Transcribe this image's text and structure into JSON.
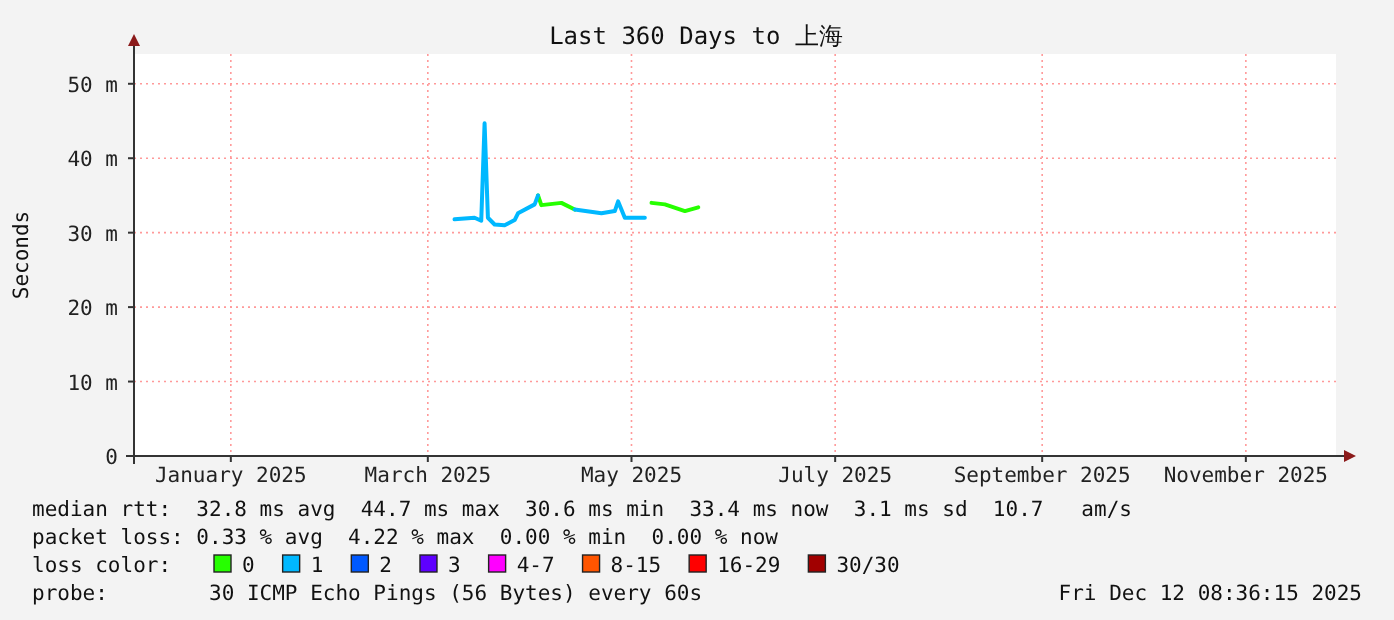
{
  "chart_data": {
    "type": "line",
    "title": "Last 360 Days to 上海",
    "ylabel": "Seconds",
    "legend_title": "loss color:",
    "x": [
      "2025-03-23",
      "2025-03-29",
      "2025-03-31",
      "2025-04-01",
      "2025-04-02",
      "2025-04-04",
      "2025-04-07",
      "2025-04-10",
      "2025-04-11",
      "2025-04-16",
      "2025-04-17",
      "2025-04-18",
      "2025-04-24",
      "2025-04-28",
      "2025-05-06",
      "2025-05-10",
      "2025-05-11",
      "2025-05-13",
      "2025-05-19",
      "2025-05-21",
      "2025-05-25",
      "2025-05-31",
      "2025-06-04"
    ],
    "series": [
      {
        "name": "0",
        "color": "#26ff00",
        "values": [
          null,
          null,
          null,
          null,
          null,
          null,
          null,
          null,
          null,
          null,
          35.0,
          33.7,
          34.0,
          33.1,
          null,
          null,
          null,
          null,
          null,
          34.0,
          33.8,
          32.9,
          33.4
        ]
      },
      {
        "name": "1",
        "color": "#00b8ff",
        "values": [
          31.8,
          32.0,
          31.6,
          44.7,
          32.0,
          31.1,
          31.0,
          31.7,
          32.6,
          33.8,
          35.0,
          null,
          null,
          33.1,
          32.6,
          32.9,
          34.2,
          32.0,
          32.0,
          null,
          null,
          null,
          null
        ]
      },
      {
        "name": "2",
        "color": "#0059ff",
        "values": [
          null,
          null,
          null,
          null,
          null,
          null,
          null,
          null,
          null,
          null,
          null,
          null,
          null,
          null,
          null,
          null,
          null,
          null,
          null,
          null,
          null,
          null,
          null
        ]
      },
      {
        "name": "3",
        "color": "#5e00ff",
        "values": [
          null,
          null,
          null,
          null,
          null,
          null,
          null,
          null,
          null,
          null,
          null,
          null,
          null,
          null,
          null,
          null,
          null,
          null,
          null,
          null,
          null,
          null,
          null
        ]
      },
      {
        "name": "4-7",
        "color": "#ff00ff",
        "values": [
          null,
          null,
          null,
          null,
          null,
          null,
          null,
          null,
          null,
          null,
          null,
          null,
          null,
          null,
          null,
          null,
          null,
          null,
          null,
          null,
          null,
          null,
          null
        ]
      },
      {
        "name": "8-15",
        "color": "#ff5500",
        "values": [
          null,
          null,
          null,
          null,
          null,
          null,
          null,
          null,
          null,
          null,
          null,
          null,
          null,
          null,
          null,
          null,
          null,
          null,
          null,
          null,
          null,
          null,
          null
        ]
      },
      {
        "name": "16-29",
        "color": "#ff0000",
        "values": [
          null,
          null,
          null,
          null,
          null,
          null,
          null,
          null,
          null,
          null,
          null,
          null,
          null,
          null,
          null,
          null,
          null,
          null,
          null,
          null,
          null,
          null,
          null
        ]
      },
      {
        "name": "30/30",
        "color": "#a10000",
        "values": [
          null,
          null,
          null,
          null,
          null,
          null,
          null,
          null,
          null,
          null,
          null,
          null,
          null,
          null,
          null,
          null,
          null,
          null,
          null,
          null,
          null,
          null,
          null
        ]
      }
    ],
    "xlim": [
      "2024-12-17",
      "2025-12-12"
    ],
    "xticks": [
      {
        "value": "2025-01-15",
        "label": "January 2025"
      },
      {
        "value": "2025-03-15",
        "label": "March 2025"
      },
      {
        "value": "2025-05-15",
        "label": "May 2025"
      },
      {
        "value": "2025-07-15",
        "label": "July 2025"
      },
      {
        "value": "2025-09-15",
        "label": "September 2025"
      },
      {
        "value": "2025-11-15",
        "label": "November 2025"
      }
    ],
    "ylim": [
      0,
      54
    ],
    "yticks": [
      {
        "value": 0,
        "label": "0"
      },
      {
        "value": 10,
        "label": "10 m"
      },
      {
        "value": 20,
        "label": "20 m"
      },
      {
        "value": 30,
        "label": "30 m"
      },
      {
        "value": 40,
        "label": "40 m"
      },
      {
        "value": 50,
        "label": "50 m"
      }
    ],
    "grid": true,
    "legend": "bottom",
    "marker": "none",
    "line_style": "solid",
    "annotations": [
      "median rtt:  32.8 ms avg  44.7 ms max  30.6 ms min  33.4 ms now  3.1 ms sd  10.7   am/s",
      "packet loss: 0.33 % avg  4.22 % max  0.00 % min  0.00 % now",
      "probe:        30 ICMP Echo Pings (56 Bytes) every 60s",
      "Fri Dec 12 08:36:15 2025"
    ]
  }
}
